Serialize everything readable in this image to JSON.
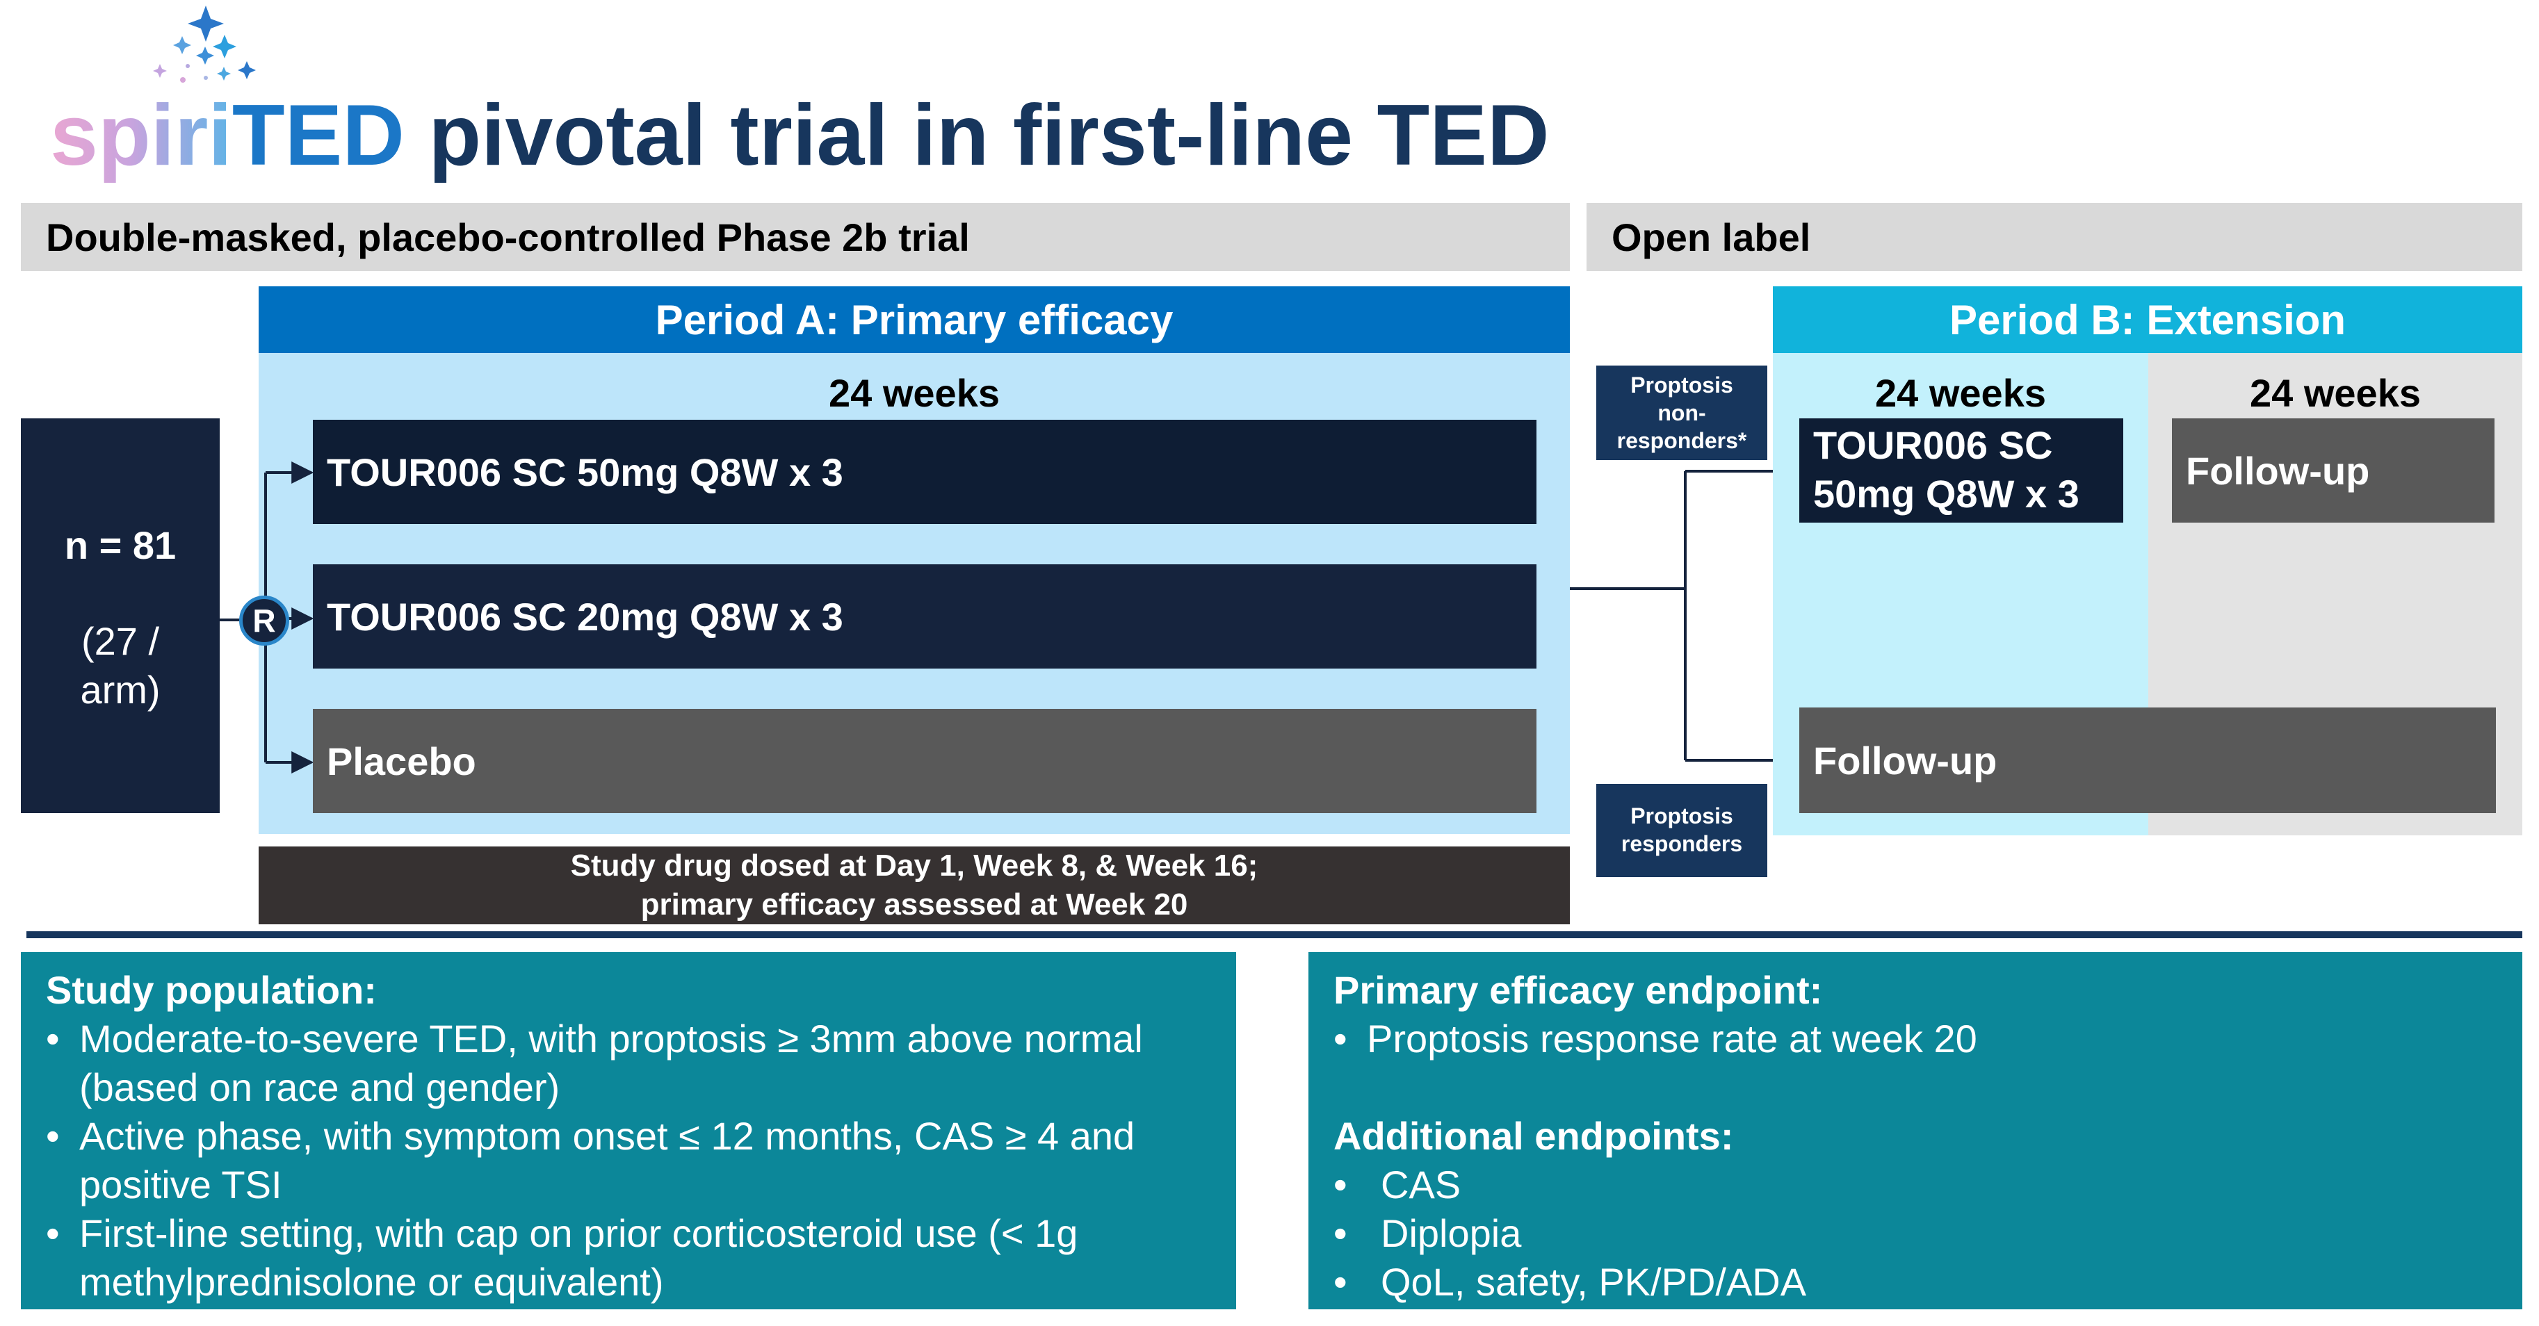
{
  "title": {
    "brand_part1": "spiri",
    "brand_part2": "TED",
    "rest": " pivotal trial in first-line TED"
  },
  "headers": {
    "double_masked": "Double-masked, placebo-controlled Phase 2b trial",
    "open_label": "Open label"
  },
  "period_a": {
    "title": "Period A: Primary efficacy",
    "duration": "24 weeks"
  },
  "period_b": {
    "title": "Period B: Extension",
    "duration_treatment": "24 weeks",
    "duration_followup": "24 weeks"
  },
  "enrollment": {
    "n": "n = 81",
    "per_arm_line1": "(27 /",
    "per_arm_line2": "arm)"
  },
  "randomization_label": "R",
  "arms": [
    {
      "label": "TOUR006 SC 50mg Q8W x 3"
    },
    {
      "label": "TOUR006 SC 20mg Q8W x 3"
    },
    {
      "label": "Placebo"
    }
  ],
  "dosing_note": {
    "line1": "Study drug dosed at Day 1, Week 8, & Week 16;",
    "line2": "primary efficacy assessed at Week 20"
  },
  "non_responders": {
    "line1": "Proptosis",
    "line2": "non-",
    "line3": "responders*"
  },
  "responders": {
    "line1": "Proptosis",
    "line2": "responders"
  },
  "extension_treatment": {
    "line1": "TOUR006 SC",
    "line2": "50mg Q8W x 3"
  },
  "followup_top": "Follow-up",
  "followup_bottom": "Follow-up",
  "study_population": {
    "heading": "Study population:",
    "items": [
      "Moderate-to-severe TED, with proptosis ≥ 3mm above normal (based on race and gender)",
      "Active phase, with symptom onset ≤ 12 months, CAS ≥ 4 and positive TSI",
      "First-line setting, with cap on prior corticosteroid use (< 1g methylprednisolone or equivalent)"
    ]
  },
  "primary_endpoint": {
    "heading": "Primary efficacy endpoint:",
    "items": [
      "Proptosis response rate at week 20"
    ]
  },
  "additional_endpoints": {
    "heading": "Additional endpoints:",
    "items": [
      "CAS",
      "Diplopia",
      "QoL, safety, PK/PD/ADA"
    ]
  },
  "colors": {
    "navy": "#15233d",
    "dark_navy": "#0e1d34",
    "blue_header": "#0070c0",
    "light_blue_bg": "#bde5fa",
    "cyan_header": "#11b3db",
    "cyan_bg": "#c3f1fc",
    "grey": "#595959",
    "teal_panel": "#0c8799",
    "divider": "#17365d"
  }
}
